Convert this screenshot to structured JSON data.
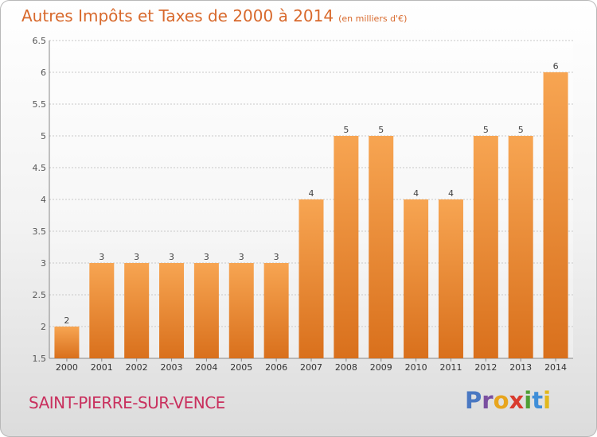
{
  "header": {
    "title": "Autres Impôts et Taxes de 2000 à 2014",
    "unit": "(en milliers d'€)"
  },
  "footer": {
    "commune": "SAINT-PIERRE-SUR-VENCE",
    "logo": "Proxiti"
  },
  "colors": {
    "title": "#d8692c",
    "commune": "#c9305e",
    "bar_top": "#f7a552",
    "bar_bottom": "#d9701c",
    "logo_letters": [
      "#4a78c2",
      "#7a4fa0",
      "#e8a51d",
      "#d93b2e",
      "#4f9f34",
      "#3f8ed8",
      "#e2b81c"
    ]
  },
  "chart_data": {
    "type": "bar",
    "title": "Autres Impôts et Taxes de 2000 à 2014",
    "subtitle": "(en milliers d'€)",
    "categories": [
      "2000",
      "2001",
      "2002",
      "2003",
      "2004",
      "2005",
      "2006",
      "2007",
      "2008",
      "2009",
      "2010",
      "2011",
      "2012",
      "2013",
      "2014"
    ],
    "values": [
      2,
      3,
      3,
      3,
      3,
      3,
      3,
      4,
      5,
      5,
      4,
      4,
      5,
      5,
      6
    ],
    "ylim": [
      1.5,
      6.5
    ],
    "yticks": [
      "1.5",
      "2",
      "2.5",
      "3",
      "3.5",
      "4",
      "4.5",
      "5",
      "5.5",
      "6",
      "6.5"
    ],
    "grid": true,
    "legend": "none"
  }
}
